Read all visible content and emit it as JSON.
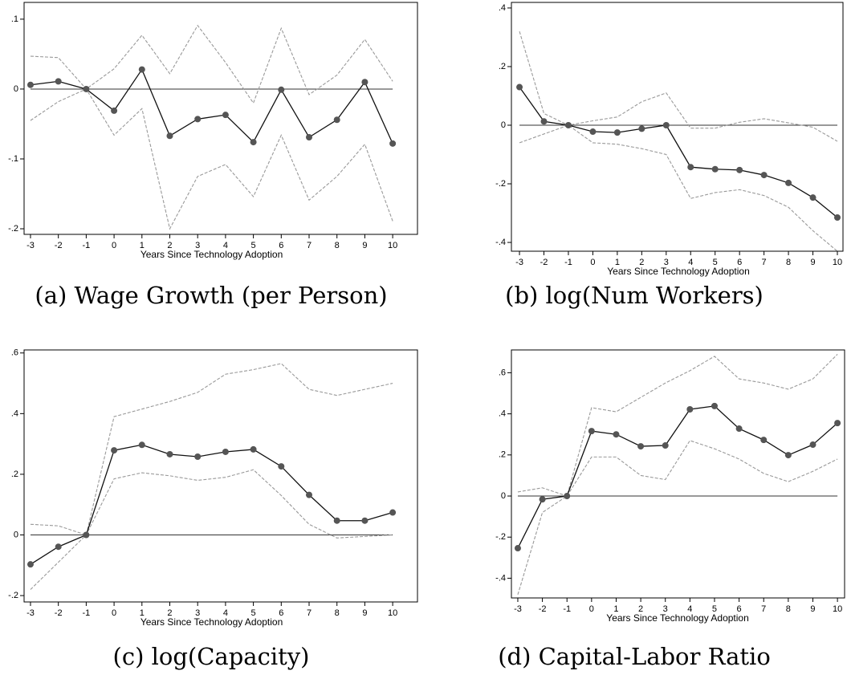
{
  "chart_data": [
    {
      "type": "line",
      "title": "(a) Wage Growth (per Person)",
      "xlabel": "Years Since Technology Adoption",
      "x": [
        -3,
        -2,
        -1,
        0,
        1,
        2,
        3,
        4,
        5,
        6,
        7,
        8,
        9,
        10
      ],
      "xlim": [
        -3.23,
        10.89
      ],
      "xticks": [
        -3,
        -2,
        -1,
        0,
        1,
        2,
        3,
        4,
        5,
        6,
        7,
        8,
        9,
        10
      ],
      "ylim": [
        -0.208,
        0.124
      ],
      "yticks": [
        {
          "value": -0.2,
          "label": "-.2"
        },
        {
          "value": -0.1,
          "label": "-.1"
        },
        0,
        {
          "value": 0.1,
          "label": ".1"
        }
      ],
      "hline": 0,
      "series": [
        {
          "color": "#555555",
          "markers": true,
          "dashed": false,
          "values": [
            0.006,
            0.011,
            0,
            -0.031,
            0.028,
            -0.067,
            -0.043,
            -0.037,
            -0.076,
            -0.001,
            -0.069,
            -0.044,
            0.01,
            -0.078
          ]
        },
        {
          "color": "#999999",
          "markers": false,
          "dashed": true,
          "values": [
            0.047,
            0.045,
            0,
            0.029,
            0.077,
            0.022,
            0.091,
            0.038,
            -0.02,
            0.087,
            -0.008,
            0.02,
            0.071,
            0.011
          ]
        },
        {
          "color": "#999999",
          "markers": false,
          "dashed": true,
          "values": [
            -0.045,
            -0.018,
            0,
            -0.066,
            -0.028,
            -0.2,
            -0.125,
            -0.108,
            -0.154,
            -0.066,
            -0.159,
            -0.125,
            -0.079,
            -0.189
          ]
        }
      ]
    },
    {
      "type": "line",
      "title": "(b) log(Num Workers)",
      "xlabel": "Years Since Technology Adoption",
      "x": [
        -3,
        -2,
        -1,
        0,
        1,
        2,
        3,
        4,
        5,
        6,
        7,
        8,
        9,
        10
      ],
      "xlim": [
        -3.33,
        10.23
      ],
      "xticks": [
        -3,
        -2,
        -1,
        0,
        1,
        2,
        3,
        4,
        5,
        6,
        7,
        8,
        9,
        10
      ],
      "ylim": [
        -0.43,
        0.419
      ],
      "yticks": [
        {
          "value": -0.4,
          "label": "-.4"
        },
        {
          "value": -0.2,
          "label": "-.2"
        },
        0,
        {
          "value": 0.2,
          "label": ".2"
        },
        {
          "value": 0.4,
          "label": ".4"
        }
      ],
      "hline": 0,
      "series": [
        {
          "color": "#555555",
          "markers": true,
          "dashed": false,
          "values": [
            0.13,
            0.013,
            0,
            -0.022,
            -0.025,
            -0.012,
            0,
            -0.143,
            -0.15,
            -0.153,
            -0.17,
            -0.197,
            -0.247,
            -0.315
          ]
        },
        {
          "color": "#999999",
          "markers": false,
          "dashed": true,
          "values": [
            0.32,
            0.04,
            0,
            0.015,
            0.028,
            0.08,
            0.11,
            -0.01,
            -0.01,
            0.01,
            0.022,
            0.008,
            -0.007,
            -0.055
          ]
        },
        {
          "color": "#999999",
          "markers": false,
          "dashed": true,
          "values": [
            -0.06,
            -0.03,
            0,
            -0.06,
            -0.065,
            -0.08,
            -0.1,
            -0.25,
            -0.23,
            -0.22,
            -0.24,
            -0.28,
            -0.36,
            -0.43
          ]
        }
      ]
    },
    {
      "type": "line",
      "title": "(c) log(Capacity)",
      "xlabel": "Years Since Technology Adoption",
      "x": [
        -3,
        -2,
        -1,
        0,
        1,
        2,
        3,
        4,
        5,
        6,
        7,
        8,
        9,
        10
      ],
      "xlim": [
        -3.23,
        10.89
      ],
      "xticks": [
        -3,
        -2,
        -1,
        0,
        1,
        2,
        3,
        4,
        5,
        6,
        7,
        8,
        9,
        10
      ],
      "ylim": [
        -0.221,
        0.61
      ],
      "yticks": [
        {
          "value": -0.2,
          "label": "-.2"
        },
        0,
        {
          "value": 0.2,
          "label": ".2"
        },
        {
          "value": 0.4,
          "label": ".4"
        },
        {
          "value": 0.6,
          "label": ".6"
        }
      ],
      "hline": 0,
      "series": [
        {
          "color": "#555555",
          "markers": true,
          "dashed": false,
          "values": [
            -0.097,
            -0.039,
            0,
            0.279,
            0.297,
            0.266,
            0.258,
            0.274,
            0.282,
            0.226,
            0.132,
            0.047,
            0.047,
            0.074
          ]
        },
        {
          "color": "#999999",
          "markers": false,
          "dashed": true,
          "values": [
            0.035,
            0.03,
            0,
            0.39,
            0.415,
            0.44,
            0.47,
            0.53,
            0.545,
            0.565,
            0.48,
            0.46,
            0.48,
            0.5
          ]
        },
        {
          "color": "#999999",
          "markers": false,
          "dashed": true,
          "values": [
            -0.18,
            -0.09,
            0,
            0.185,
            0.205,
            0.195,
            0.18,
            0.19,
            0.215,
            0.13,
            0.035,
            -0.01,
            -0.005,
            0
          ]
        }
      ]
    },
    {
      "type": "line",
      "title": "(d) Capital-Labor Ratio",
      "xlabel": "Years Since Technology Adoption",
      "x": [
        -3,
        -2,
        -1,
        0,
        1,
        2,
        3,
        4,
        5,
        6,
        7,
        8,
        9,
        10
      ],
      "xlim": [
        -3.26,
        10.29
      ],
      "xticks": [
        -3,
        -2,
        -1,
        0,
        1,
        2,
        3,
        4,
        5,
        6,
        7,
        8,
        9,
        10
      ],
      "ylim": [
        -0.496,
        0.711
      ],
      "yticks": [
        {
          "value": -0.4,
          "label": "-.4"
        },
        {
          "value": -0.2,
          "label": "-.2"
        },
        0,
        {
          "value": 0.2,
          "label": ".2"
        },
        {
          "value": 0.4,
          "label": ".4"
        },
        {
          "value": 0.6,
          "label": ".6"
        }
      ],
      "hline": 0,
      "series": [
        {
          "color": "#555555",
          "markers": true,
          "dashed": false,
          "values": [
            -0.254,
            -0.016,
            0,
            0.316,
            0.3,
            0.242,
            0.246,
            0.422,
            0.438,
            0.328,
            0.273,
            0.199,
            0.25,
            0.355
          ]
        },
        {
          "color": "#999999",
          "markers": false,
          "dashed": true,
          "values": [
            0.02,
            0.04,
            0,
            0.43,
            0.41,
            0.48,
            0.55,
            0.61,
            0.68,
            0.57,
            0.55,
            0.52,
            0.57,
            0.69
          ]
        },
        {
          "color": "#999999",
          "markers": false,
          "dashed": true,
          "values": [
            -0.48,
            -0.08,
            0,
            0.19,
            0.19,
            0.1,
            0.08,
            0.27,
            0.23,
            0.18,
            0.11,
            0.07,
            0.12,
            0.18
          ]
        }
      ]
    }
  ]
}
